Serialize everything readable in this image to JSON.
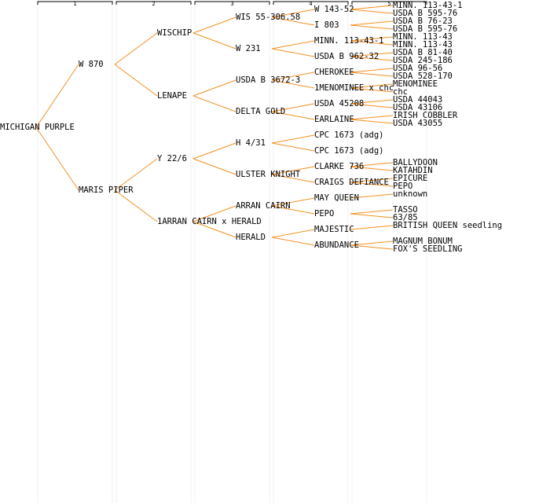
{
  "columns": [
    "1",
    "2",
    "3",
    "4",
    "5"
  ],
  "tree": {
    "label": "MICHIGAN PURPLE",
    "children": [
      {
        "label": "W 870",
        "children": [
          {
            "label": "WISCHIP",
            "children": [
              {
                "label": "WIS 55-306.58",
                "children": [
                  {
                    "label": "W 143-52",
                    "children": [
                      {
                        "label": "MINN. 113-43-1"
                      },
                      {
                        "label": "USDA B 595-76"
                      }
                    ]
                  },
                  {
                    "label": "I 803",
                    "children": [
                      {
                        "label": "USDA B 76-23"
                      },
                      {
                        "label": "USDA B 595-76"
                      }
                    ]
                  }
                ]
              },
              {
                "label": "W 231",
                "children": [
                  {
                    "label": "MINN. 113-43-1",
                    "children": [
                      {
                        "label": "MINN. 113-43"
                      },
                      {
                        "label": "MINN. 113-43"
                      }
                    ]
                  },
                  {
                    "label": "USDA B 962-32",
                    "children": [
                      {
                        "label": "USDA B 81-40"
                      },
                      {
                        "label": "USDA 245-186"
                      }
                    ]
                  }
                ]
              }
            ]
          },
          {
            "label": "LENAPE",
            "children": [
              {
                "label": "USDA B 3672-3",
                "children": [
                  {
                    "label": "CHEROKEE",
                    "children": [
                      {
                        "label": "USDA 96-56"
                      },
                      {
                        "label": "USDA 528-170"
                      }
                    ]
                  },
                  {
                    "label": "1MENOMINEE x chc",
                    "children": [
                      {
                        "label": "MENOMINEE"
                      },
                      {
                        "label": "chc"
                      }
                    ]
                  }
                ]
              },
              {
                "label": "DELTA GOLD",
                "children": [
                  {
                    "label": "USDA 45208",
                    "children": [
                      {
                        "label": "USDA 44043"
                      },
                      {
                        "label": "USDA 43106"
                      }
                    ]
                  },
                  {
                    "label": "EARLAINE",
                    "children": [
                      {
                        "label": "IRISH COBBLER"
                      },
                      {
                        "label": "USDA 43055"
                      }
                    ]
                  }
                ]
              }
            ]
          }
        ]
      },
      {
        "label": "MARIS PIPER",
        "children": [
          {
            "label": "Y 22/6",
            "children": [
              {
                "label": "H 4/31",
                "children": [
                  {
                    "label": "CPC 1673 (adg)"
                  },
                  {
                    "label": "CPC 1673 (adg)"
                  }
                ]
              },
              {
                "label": "ULSTER KNIGHT",
                "children": [
                  {
                    "label": "CLARKE 736",
                    "children": [
                      {
                        "label": "BALLYDOON"
                      },
                      {
                        "label": "KATAHDIN"
                      }
                    ]
                  },
                  {
                    "label": "CRAIGS DEFIANCE",
                    "children": [
                      {
                        "label": "EPICURE"
                      },
                      {
                        "label": "PEPO"
                      }
                    ]
                  }
                ]
              }
            ]
          },
          {
            "label": "1ARRAN CAIRN x HERALD",
            "children": [
              {
                "label": "ARRAN CAIRN",
                "children": [
                  {
                    "label": "MAY QUEEN",
                    "children": [
                      {
                        "label": "unknown"
                      }
                    ]
                  },
                  {
                    "label": "PEPO",
                    "color": "#0000cc",
                    "children": [
                      {
                        "label": "TASSO"
                      },
                      {
                        "label": "63/85"
                      }
                    ]
                  }
                ]
              },
              {
                "label": "HERALD",
                "children": [
                  {
                    "label": "MAJESTIC",
                    "children": [
                      {
                        "label": "BRITISH QUEEN seedling"
                      }
                    ]
                  },
                  {
                    "label": "ABUNDANCE",
                    "children": [
                      {
                        "label": "MAGNUM BONUM"
                      },
                      {
                        "label": "FOX'S SEEDLING"
                      }
                    ]
                  }
                ]
              }
            ]
          }
        ]
      }
    ]
  }
}
